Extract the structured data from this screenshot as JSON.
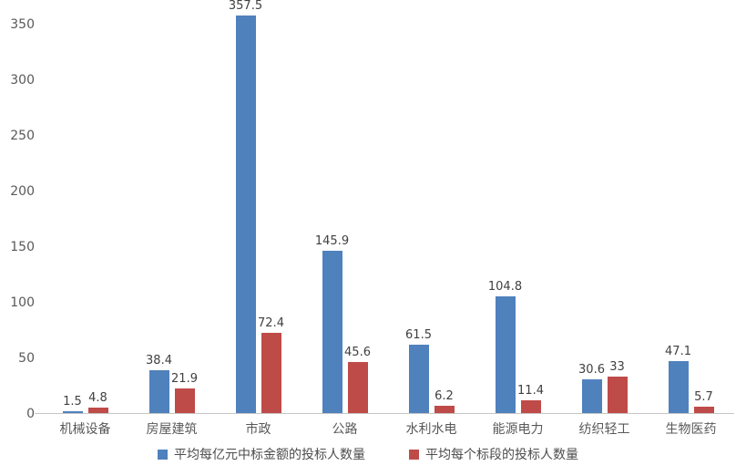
{
  "chart_data": {
    "type": "bar",
    "title": "",
    "categories": [
      "机械设备",
      "房屋建筑",
      "市政",
      "公路",
      "水利水电",
      "能源电力",
      "纺织轻工",
      "生物医药"
    ],
    "series": [
      {
        "name": "平均每亿元中标金额的投标人数量",
        "color": "#4F81BD",
        "values": [
          1.5,
          38.4,
          357.5,
          145.9,
          61.5,
          104.8,
          30.6,
          47.1
        ]
      },
      {
        "name": "平均每个标段的投标人数量",
        "color": "#BE4B48",
        "values": [
          4.8,
          21.9,
          72.4,
          45.6,
          6.2,
          11.4,
          33,
          5.7
        ]
      }
    ],
    "xlabel": "",
    "ylabel": "",
    "ylim": [
      0,
      350
    ],
    "yticks": [
      0,
      50,
      100,
      150,
      200,
      250,
      300,
      350
    ],
    "grid": false,
    "value_labels": true,
    "legend_position": "bottom"
  },
  "colors": {
    "background": "#FFFFFF",
    "axis_line": "#C6C6C6",
    "tick_text": "#595959",
    "category_text": "#595959",
    "value_text": "#404040"
  }
}
